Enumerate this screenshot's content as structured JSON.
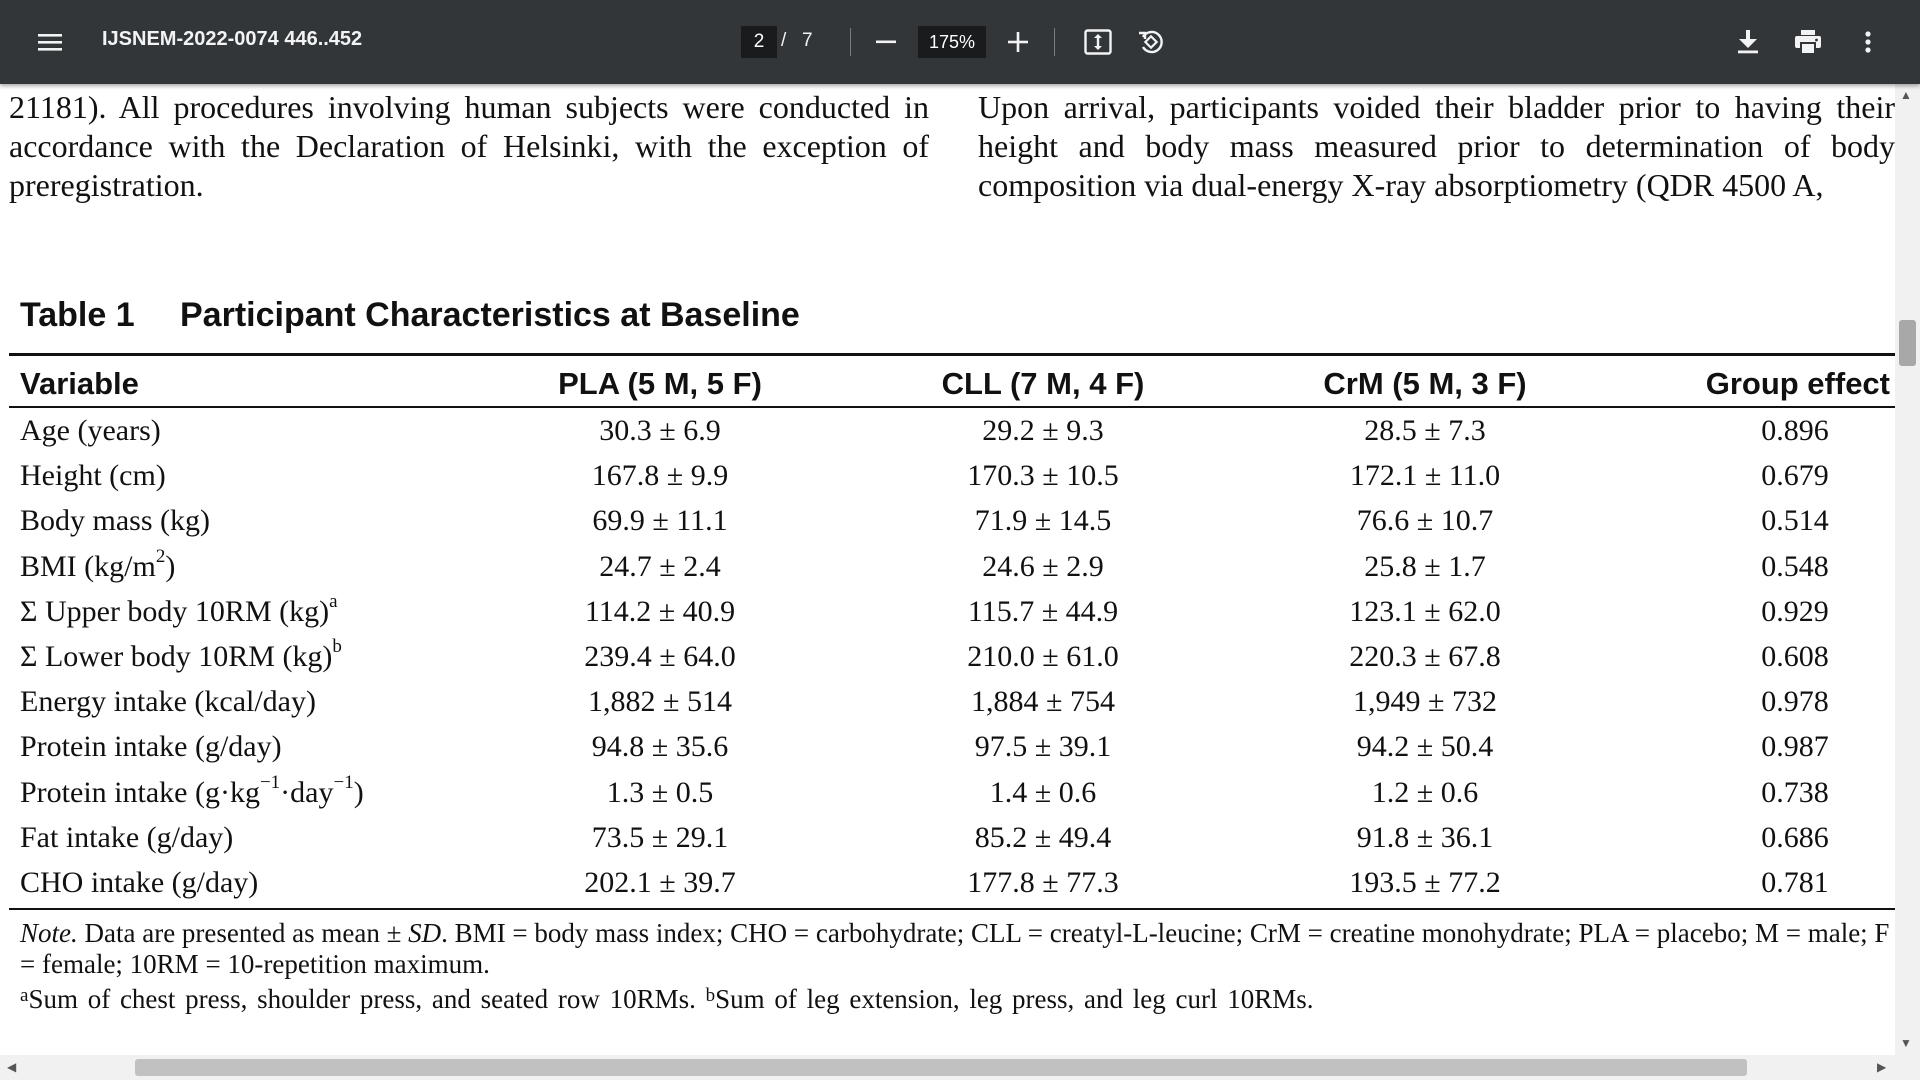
{
  "toolbar": {
    "menu_icon": "hamburger-menu-icon",
    "title": "IJSNEM-2022-0074 446..452",
    "current_page": "2",
    "page_separator": "/",
    "total_pages": "7",
    "zoom": "175%",
    "zoom_out_icon": "minus-icon",
    "zoom_in_icon": "plus-icon",
    "fit_icon": "fit-page-icon",
    "rotate_icon": "rotate-icon",
    "download_icon": "download-icon",
    "print_icon": "print-icon",
    "more_icon": "more-vertical-icon"
  },
  "body_text": {
    "left_column": "21181). All procedures involving human subjects were conducted in accordance with the Declaration of Helsinki, with the exception of preregistration.",
    "right_column": "Upon arrival, participants voided their bladder prior to having their height and body mass measured prior to determination of body composition via dual-energy X-ray absorptiometry (QDR 4500 A,"
  },
  "table": {
    "label": "Table 1",
    "title": "Participant Characteristics at Baseline",
    "headers": [
      "Variable",
      "PLA (5 M, 5 F)",
      "CLL (7 M, 4 F)",
      "CrM (5 M, 3 F)",
      "Group effect"
    ],
    "rows": [
      {
        "variable": "Age (years)",
        "sup": "",
        "pla": "30.3 ± 6.9",
        "cll": "29.2 ± 9.3",
        "crm": "28.5 ± 7.3",
        "group": "0.896"
      },
      {
        "variable": "Height (cm)",
        "sup": "",
        "pla": "167.8 ± 9.9",
        "cll": "170.3 ± 10.5",
        "crm": "172.1 ± 11.0",
        "group": "0.679"
      },
      {
        "variable": "Body mass (kg)",
        "sup": "",
        "pla": "69.9 ± 11.1",
        "cll": "71.9 ± 14.5",
        "crm": "76.6 ± 10.7",
        "group": "0.514"
      },
      {
        "variable": "BMI (kg/m",
        "sup": "2",
        "suffix": ")",
        "pla": "24.7 ± 2.4",
        "cll": "24.6 ± 2.9",
        "crm": "25.8 ± 1.7",
        "group": "0.548"
      },
      {
        "variable": "Σ Upper body 10RM (kg)",
        "sup": "a",
        "suffix": "",
        "pla": "114.2 ± 40.9",
        "cll": "115.7 ± 44.9",
        "crm": "123.1 ± 62.0",
        "group": "0.929"
      },
      {
        "variable": "Σ Lower body 10RM (kg)",
        "sup": "b",
        "suffix": "",
        "pla": "239.4 ± 64.0",
        "cll": "210.0 ± 61.0",
        "crm": "220.3 ± 67.8",
        "group": "0.608"
      },
      {
        "variable": "Energy intake (kcal/day)",
        "sup": "",
        "pla": "1,882 ± 514",
        "cll": "1,884 ± 754",
        "crm": "1,949 ± 732",
        "group": "0.978"
      },
      {
        "variable": "Protein intake (g/day)",
        "sup": "",
        "pla": "94.8 ± 35.6",
        "cll": "97.5 ± 39.1",
        "crm": "94.2 ± 50.4",
        "group": "0.987"
      },
      {
        "variable": "Protein intake (g·kg",
        "sup": "−1",
        "mid": "·day",
        "sup2": "−1",
        "suffix": ")",
        "pla": "1.3 ± 0.5",
        "cll": "1.4 ± 0.6",
        "crm": "1.2 ± 0.6",
        "group": "0.738"
      },
      {
        "variable": "Fat intake (g/day)",
        "sup": "",
        "pla": "73.5 ± 29.1",
        "cll": "85.2 ± 49.4",
        "crm": "91.8 ± 36.1",
        "group": "0.686"
      },
      {
        "variable": "CHO intake (g/day)",
        "sup": "",
        "pla": "202.1 ± 39.7",
        "cll": "177.8 ± 77.3",
        "crm": "193.5 ± 77.2",
        "group": "0.781"
      }
    ],
    "note": {
      "lead": "Note.",
      "part1": " Data are presented as mean ± ",
      "sd": "SD",
      "part2": ". BMI = body mass index; CHO = carbohydrate; CLL = creatyl-L-leucine; CrM = creatine monohydrate; PLA = placebo; M = male; F = female; 10RM = 10-repetition maximum.",
      "fn_a_mark": "a",
      "fn_a": "Sum of chest press, shoulder press, and seated row 10RMs.",
      "fn_b_mark": "b",
      "fn_b": "Sum of leg extension, leg press, and leg curl 10RMs."
    }
  },
  "scrollbars": {
    "up_arrow_icon": "scroll-up-arrow-icon",
    "down_arrow_icon": "scroll-down-arrow-icon",
    "left_arrow_icon": "scroll-left-arrow-icon",
    "right_arrow_icon": "scroll-right-arrow-icon"
  }
}
